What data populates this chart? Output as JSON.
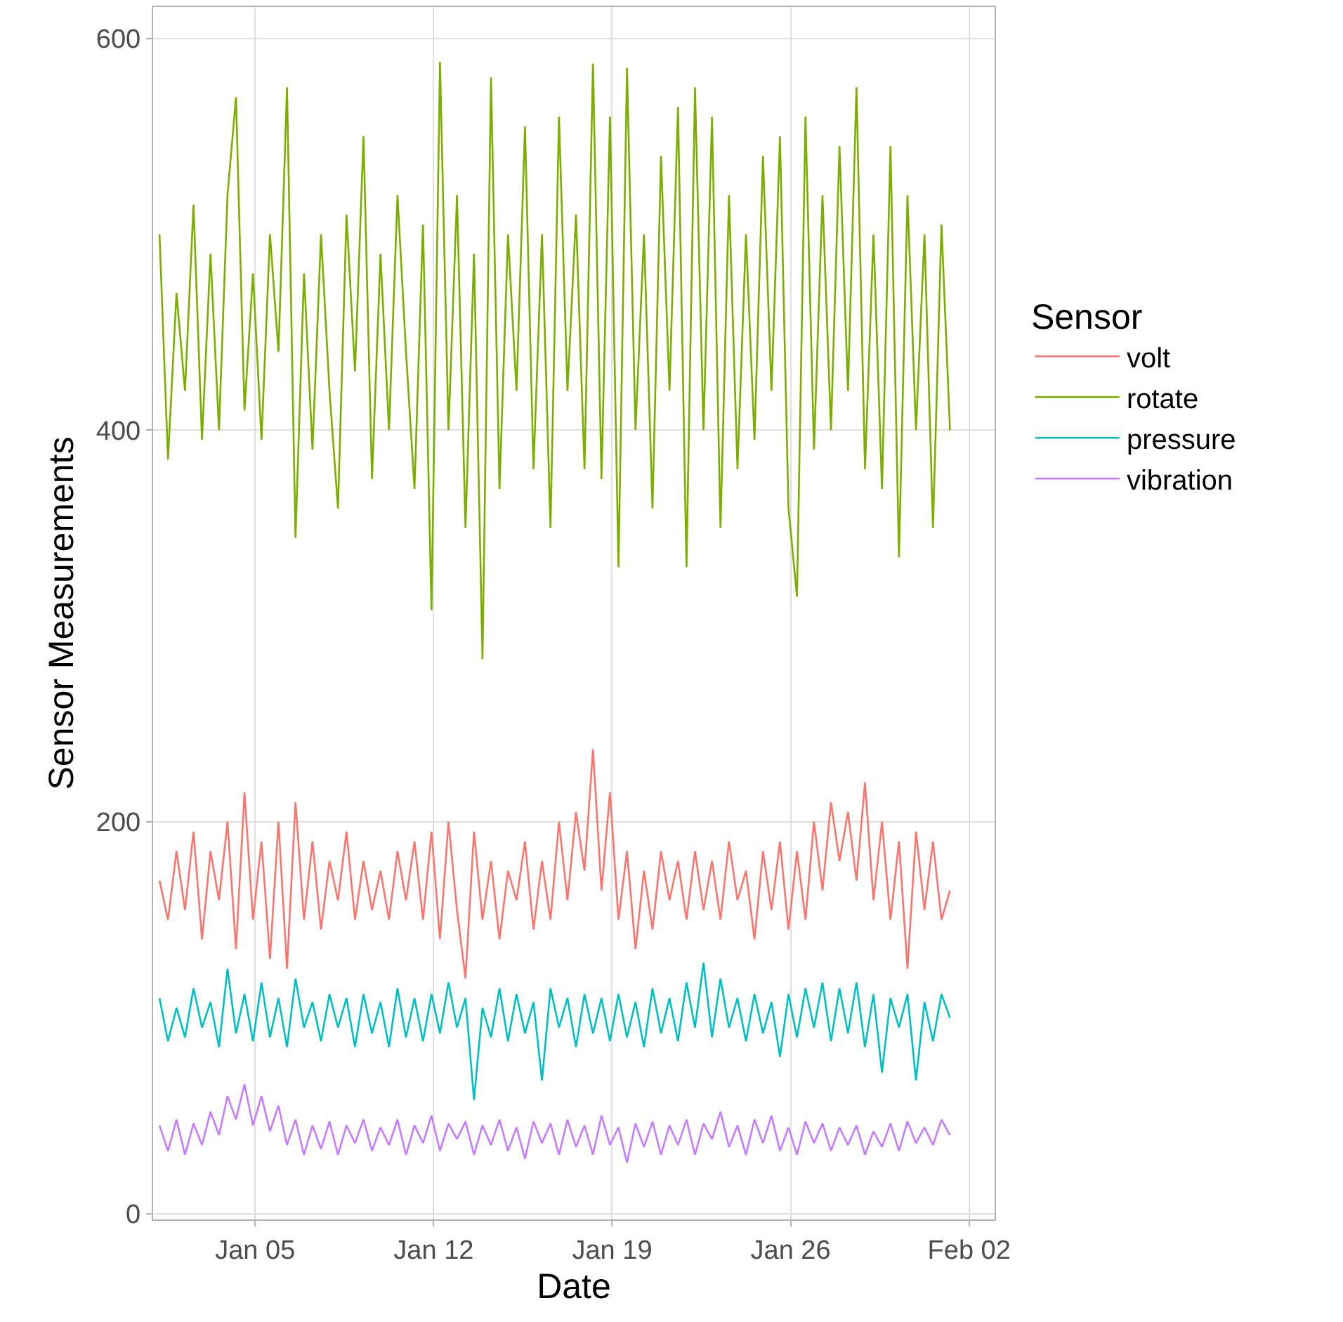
{
  "chart_data": {
    "type": "line",
    "xlabel": "Date",
    "ylabel": "Sensor Measurements",
    "legend_title": "Sensor",
    "x": [
      "--01-01T06:00",
      "--01-01T14:00",
      "--01-01T22:00",
      "--01-02T06:00",
      "--01-02T14:00",
      "--01-02T22:00",
      "--01-03T06:00",
      "--01-03T14:00",
      "--01-03T22:00",
      "--01-04T06:00",
      "--01-04T14:00",
      "--01-04T22:00",
      "--01-05T06:00",
      "--01-05T14:00",
      "--01-05T22:00",
      "--01-06T06:00",
      "--01-06T14:00",
      "--01-06T22:00",
      "--01-07T06:00",
      "--01-07T14:00",
      "--01-07T22:00",
      "--01-08T06:00",
      "--01-08T14:00",
      "--01-08T22:00",
      "--01-09T06:00",
      "--01-09T14:00",
      "--01-09T22:00",
      "--01-10T06:00",
      "--01-10T14:00",
      "--01-10T22:00",
      "--01-11T06:00",
      "--01-11T14:00",
      "--01-11T22:00",
      "--01-12T06:00",
      "--01-12T14:00",
      "--01-12T22:00",
      "--01-13T06:00",
      "--01-13T14:00",
      "--01-13T22:00",
      "--01-14T06:00",
      "--01-14T14:00",
      "--01-14T22:00",
      "--01-15T06:00",
      "--01-15T14:00",
      "--01-15T22:00",
      "--01-16T06:00",
      "--01-16T14:00",
      "--01-16T22:00",
      "--01-17T06:00",
      "--01-17T14:00",
      "--01-17T22:00",
      "--01-18T06:00",
      "--01-18T14:00",
      "--01-18T22:00",
      "--01-19T06:00",
      "--01-19T14:00",
      "--01-19T22:00",
      "--01-20T06:00",
      "--01-20T14:00",
      "--01-20T22:00",
      "--01-21T06:00",
      "--01-21T14:00",
      "--01-21T22:00",
      "--01-22T06:00",
      "--01-22T14:00",
      "--01-22T22:00",
      "--01-23T06:00",
      "--01-23T14:00",
      "--01-23T22:00",
      "--01-24T06:00",
      "--01-24T14:00",
      "--01-24T22:00",
      "--01-25T06:00",
      "--01-25T14:00",
      "--01-25T22:00",
      "--01-26T06:00",
      "--01-26T14:00",
      "--01-26T22:00",
      "--01-27T06:00",
      "--01-27T14:00",
      "--01-27T22:00",
      "--01-28T06:00",
      "--01-28T14:00",
      "--01-28T22:00",
      "--01-29T06:00",
      "--01-29T14:00",
      "--01-29T22:00",
      "--01-30T06:00",
      "--01-30T14:00",
      "--01-30T22:00",
      "--01-31T06:00",
      "--01-31T14:00",
      "--01-31T22:00",
      "--02-01T06:00"
    ],
    "series": [
      {
        "name": "volt",
        "color": "#f8766d",
        "values": [
          170,
          150,
          185,
          155,
          195,
          140,
          185,
          160,
          200,
          135,
          215,
          150,
          190,
          130,
          200,
          125,
          210,
          150,
          190,
          145,
          180,
          160,
          195,
          150,
          180,
          155,
          175,
          150,
          185,
          160,
          190,
          150,
          195,
          140,
          200,
          155,
          120,
          195,
          150,
          180,
          140,
          175,
          160,
          190,
          145,
          180,
          150,
          200,
          160,
          205,
          175,
          237,
          165,
          215,
          150,
          185,
          135,
          175,
          145,
          185,
          160,
          180,
          150,
          185,
          155,
          180,
          150,
          190,
          160,
          175,
          140,
          185,
          155,
          190,
          145,
          185,
          150,
          200,
          165,
          210,
          180,
          205,
          170,
          220,
          160,
          200,
          150,
          190,
          125,
          195,
          155,
          190,
          150,
          165
        ]
      },
      {
        "name": "rotate",
        "color": "#7cae00",
        "values": [
          500,
          385,
          470,
          420,
          515,
          395,
          490,
          400,
          520,
          570,
          410,
          480,
          395,
          500,
          440,
          575,
          345,
          480,
          390,
          500,
          420,
          360,
          510,
          430,
          550,
          375,
          490,
          400,
          520,
          440,
          370,
          505,
          308,
          588,
          400,
          520,
          350,
          490,
          283,
          580,
          370,
          500,
          420,
          555,
          380,
          500,
          350,
          560,
          420,
          510,
          380,
          587,
          375,
          560,
          330,
          585,
          400,
          500,
          360,
          540,
          420,
          565,
          330,
          575,
          400,
          560,
          350,
          520,
          380,
          500,
          395,
          540,
          420,
          550,
          360,
          315,
          560,
          390,
          520,
          400,
          545,
          420,
          575,
          380,
          500,
          370,
          545,
          335,
          520,
          400,
          500,
          350,
          505,
          400
        ]
      },
      {
        "name": "pressure",
        "color": "#00bfc4",
        "values": [
          110,
          88,
          105,
          90,
          115,
          95,
          108,
          85,
          125,
          92,
          112,
          88,
          118,
          90,
          110,
          85,
          120,
          95,
          108,
          88,
          112,
          95,
          110,
          85,
          112,
          92,
          108,
          85,
          115,
          90,
          110,
          88,
          112,
          92,
          118,
          95,
          110,
          58,
          105,
          90,
          115,
          88,
          112,
          92,
          108,
          68,
          115,
          95,
          110,
          85,
          112,
          92,
          110,
          88,
          112,
          90,
          108,
          85,
          115,
          92,
          110,
          88,
          118,
          95,
          128,
          90,
          120,
          95,
          110,
          88,
          112,
          92,
          108,
          80,
          112,
          90,
          115,
          95,
          118,
          88,
          115,
          92,
          118,
          85,
          112,
          72,
          110,
          95,
          112,
          68,
          108,
          88,
          112,
          100
        ]
      },
      {
        "name": "vibration",
        "color": "#c77cff",
        "values": [
          45,
          32,
          48,
          30,
          46,
          35,
          52,
          40,
          60,
          48,
          66,
          45,
          60,
          42,
          55,
          35,
          48,
          30,
          45,
          33,
          47,
          30,
          45,
          36,
          48,
          32,
          44,
          35,
          48,
          30,
          45,
          36,
          50,
          32,
          46,
          38,
          47,
          30,
          45,
          35,
          48,
          32,
          44,
          28,
          47,
          36,
          46,
          30,
          48,
          34,
          45,
          30,
          50,
          35,
          44,
          26,
          46,
          34,
          47,
          30,
          45,
          35,
          48,
          30,
          46,
          38,
          52,
          34,
          45,
          30,
          48,
          36,
          50,
          32,
          44,
          30,
          47,
          36,
          46,
          32,
          44,
          35,
          45,
          30,
          42,
          34,
          46,
          32,
          47,
          36,
          44,
          35,
          48,
          40
        ]
      }
    ],
    "xlim": [
      "--01-01",
      "--02-03"
    ],
    "xticks": [
      {
        "value": "--01-05",
        "label": "Jan 05"
      },
      {
        "value": "--01-12",
        "label": "Jan 12"
      },
      {
        "value": "--01-19",
        "label": "Jan 19"
      },
      {
        "value": "--01-26",
        "label": "Jan 26"
      },
      {
        "value": "--02-02",
        "label": "Feb 02"
      }
    ],
    "ylim": [
      -3,
      616
    ],
    "yticks": [
      0,
      200,
      400,
      600
    ],
    "grid": true,
    "legend": "right",
    "line_style": "solid",
    "marker": "none"
  }
}
